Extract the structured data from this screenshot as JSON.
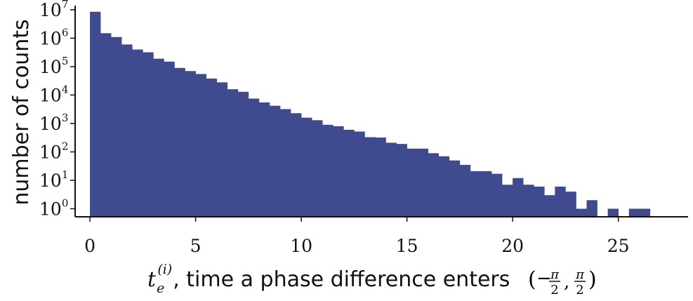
{
  "chart_data": {
    "type": "bar",
    "title": "",
    "ylabel": "number of counts",
    "xlabel": {
      "var": "t",
      "sub": "e",
      "sup": "(i)",
      "text": ", time a phase difference enters ",
      "interval": "(−π/2, π/2)",
      "interval_parts": {
        "open": "(",
        "minus": "−",
        "num": "π",
        "den": "2",
        "sep": ",",
        "close": ")"
      }
    },
    "x_ticks": [
      0,
      5,
      10,
      15,
      20,
      25
    ],
    "x_tick_labels": [
      "0",
      "5",
      "10",
      "15",
      "20",
      "25"
    ],
    "y_scale": "log",
    "y_ticks": [
      {
        "value": 1,
        "base": "10",
        "exp": "0"
      },
      {
        "value": 10,
        "base": "10",
        "exp": "1"
      },
      {
        "value": 100,
        "base": "10",
        "exp": "2"
      },
      {
        "value": 1000,
        "base": "10",
        "exp": "3"
      },
      {
        "value": 10000,
        "base": "10",
        "exp": "4"
      },
      {
        "value": 100000,
        "base": "10",
        "exp": "5"
      },
      {
        "value": 1000000,
        "base": "10",
        "exp": "6"
      },
      {
        "value": 10000000,
        "base": "10",
        "exp": "7"
      }
    ],
    "xlim": [
      -0.7,
      28.3
    ],
    "ylim": [
      0.52,
      14000000
    ],
    "bin_width": 0.5,
    "bin_starts": [
      0,
      0.5,
      1,
      1.5,
      2,
      2.5,
      3,
      3.5,
      4,
      4.5,
      5,
      5.5,
      6,
      6.5,
      7,
      7.5,
      8,
      8.5,
      9,
      9.5,
      10,
      10.5,
      11,
      11.5,
      12,
      12.5,
      13,
      13.5,
      14,
      14.5,
      15,
      15.5,
      16,
      16.5,
      17,
      17.5,
      18,
      18.5,
      19,
      19.5,
      20,
      20.5,
      21,
      21.5,
      22,
      22.5,
      23,
      23.5,
      24,
      24.5,
      25,
      25.5,
      26,
      26.5
    ],
    "counts": [
      8500000,
      1500000,
      1100000,
      600000,
      400000,
      320000,
      190000,
      150000,
      90000,
      70000,
      55000,
      38000,
      28000,
      16000,
      13000,
      7500,
      5500,
      4200,
      3200,
      2300,
      1600,
      1300,
      900,
      800,
      600,
      520,
      330,
      320,
      210,
      190,
      130,
      130,
      90,
      70,
      50,
      35,
      21,
      21,
      17,
      7,
      12,
      7,
      6,
      3,
      6,
      4,
      1,
      2,
      0,
      1,
      0,
      1,
      1,
      0
    ],
    "bar_color": "#404a8f",
    "grid": false,
    "legend": "none"
  }
}
